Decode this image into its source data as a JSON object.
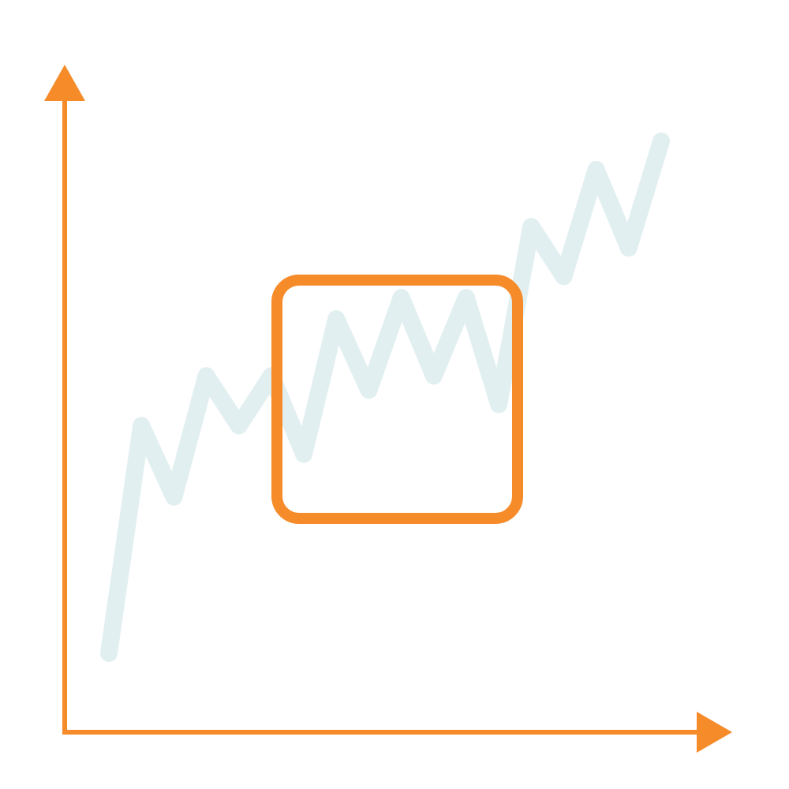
{
  "icon": {
    "name": "chart-zoom-region-icon",
    "axis_color": "#F68B2A",
    "line_color": "#E2EFF1",
    "focus_box_color": "#F68B2A",
    "background_color": "#FFFFFF"
  },
  "chart_data": {
    "type": "line",
    "title": "",
    "xlabel": "",
    "ylabel": "",
    "x": [
      0,
      1,
      2,
      3,
      4,
      5,
      6,
      7,
      8,
      9,
      10,
      11,
      12,
      13,
      14,
      15,
      16,
      17
    ],
    "series": [
      {
        "values": [
          5,
          37,
          27,
          44,
          37,
          44,
          33,
          52,
          42,
          55,
          44,
          55,
          40,
          65,
          58,
          73,
          62,
          77
        ]
      }
    ],
    "grid": false,
    "legend": "none"
  }
}
